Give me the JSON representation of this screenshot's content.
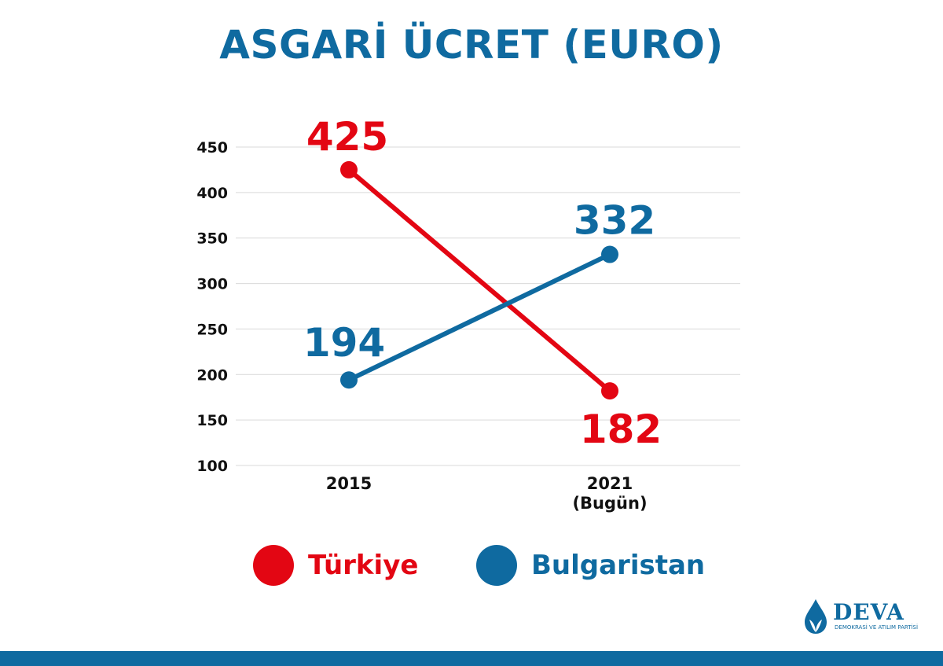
{
  "colors": {
    "red": "#e30613",
    "blue": "#0f6aa0",
    "text": "#111111",
    "grid": "#d9d9d9"
  },
  "title": "ASGARİ ÜCRET (EURO)",
  "chart_data": {
    "type": "line",
    "title": "ASGARİ ÜCRET (EURO)",
    "x": [
      "2015",
      "2021\n(Bugün)"
    ],
    "x_tick_labels": [
      [
        "2015"
      ],
      [
        "2021",
        "(Bugün)"
      ]
    ],
    "ylim": [
      100,
      450
    ],
    "yticks": [
      100,
      150,
      200,
      250,
      300,
      350,
      400,
      450
    ],
    "grid": true,
    "legend": "bottom",
    "series": [
      {
        "name": "Türkiye",
        "values": [
          425,
          182
        ],
        "color": "#e30613",
        "data_labels": [
          "425",
          "182"
        ]
      },
      {
        "name": "Bulgaristan",
        "values": [
          194,
          332
        ],
        "color": "#0f6aa0",
        "data_labels": [
          "194",
          "332"
        ]
      }
    ]
  },
  "logo": {
    "name": "DEVA",
    "subtitle": "DEMOKRASİ VE ATILIM PARTİSİ",
    "icon": "water-drop-icon"
  }
}
